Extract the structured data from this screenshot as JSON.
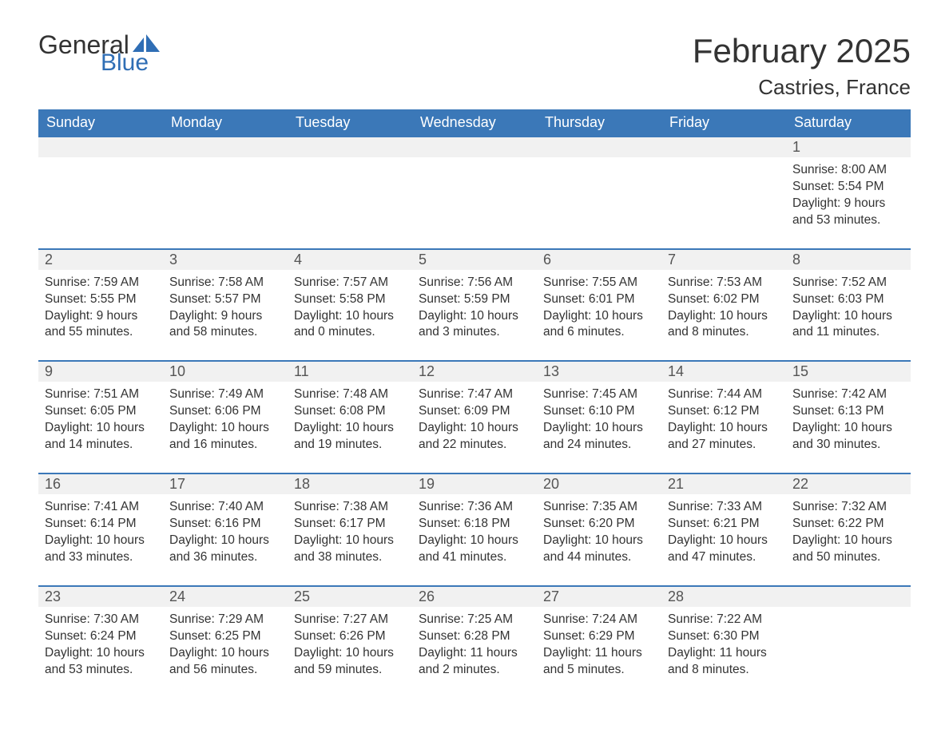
{
  "logo": {
    "text1": "General",
    "text2": "Blue",
    "icon_color": "#2f6eb5",
    "text1_color": "#333333",
    "text2_color": "#2f6eb5"
  },
  "title": "February 2025",
  "location": "Castries, France",
  "colors": {
    "header_bg": "#3b78b8",
    "header_text": "#ffffff",
    "daynum_bg": "#f1f1f1",
    "daynum_border": "#3b78b8",
    "body_bg": "#ffffff",
    "text": "#333333"
  },
  "fonts": {
    "title_size_pt": 32,
    "location_size_pt": 20,
    "header_size_pt": 14,
    "daynum_size_pt": 14,
    "cell_size_pt": 12
  },
  "day_headers": [
    "Sunday",
    "Monday",
    "Tuesday",
    "Wednesday",
    "Thursday",
    "Friday",
    "Saturday"
  ],
  "weeks": [
    [
      null,
      null,
      null,
      null,
      null,
      null,
      {
        "n": "1",
        "sunrise": "8:00 AM",
        "sunset": "5:54 PM",
        "daylight": "9 hours and 53 minutes."
      }
    ],
    [
      {
        "n": "2",
        "sunrise": "7:59 AM",
        "sunset": "5:55 PM",
        "daylight": "9 hours and 55 minutes."
      },
      {
        "n": "3",
        "sunrise": "7:58 AM",
        "sunset": "5:57 PM",
        "daylight": "9 hours and 58 minutes."
      },
      {
        "n": "4",
        "sunrise": "7:57 AM",
        "sunset": "5:58 PM",
        "daylight": "10 hours and 0 minutes."
      },
      {
        "n": "5",
        "sunrise": "7:56 AM",
        "sunset": "5:59 PM",
        "daylight": "10 hours and 3 minutes."
      },
      {
        "n": "6",
        "sunrise": "7:55 AM",
        "sunset": "6:01 PM",
        "daylight": "10 hours and 6 minutes."
      },
      {
        "n": "7",
        "sunrise": "7:53 AM",
        "sunset": "6:02 PM",
        "daylight": "10 hours and 8 minutes."
      },
      {
        "n": "8",
        "sunrise": "7:52 AM",
        "sunset": "6:03 PM",
        "daylight": "10 hours and 11 minutes."
      }
    ],
    [
      {
        "n": "9",
        "sunrise": "7:51 AM",
        "sunset": "6:05 PM",
        "daylight": "10 hours and 14 minutes."
      },
      {
        "n": "10",
        "sunrise": "7:49 AM",
        "sunset": "6:06 PM",
        "daylight": "10 hours and 16 minutes."
      },
      {
        "n": "11",
        "sunrise": "7:48 AM",
        "sunset": "6:08 PM",
        "daylight": "10 hours and 19 minutes."
      },
      {
        "n": "12",
        "sunrise": "7:47 AM",
        "sunset": "6:09 PM",
        "daylight": "10 hours and 22 minutes."
      },
      {
        "n": "13",
        "sunrise": "7:45 AM",
        "sunset": "6:10 PM",
        "daylight": "10 hours and 24 minutes."
      },
      {
        "n": "14",
        "sunrise": "7:44 AM",
        "sunset": "6:12 PM",
        "daylight": "10 hours and 27 minutes."
      },
      {
        "n": "15",
        "sunrise": "7:42 AM",
        "sunset": "6:13 PM",
        "daylight": "10 hours and 30 minutes."
      }
    ],
    [
      {
        "n": "16",
        "sunrise": "7:41 AM",
        "sunset": "6:14 PM",
        "daylight": "10 hours and 33 minutes."
      },
      {
        "n": "17",
        "sunrise": "7:40 AM",
        "sunset": "6:16 PM",
        "daylight": "10 hours and 36 minutes."
      },
      {
        "n": "18",
        "sunrise": "7:38 AM",
        "sunset": "6:17 PM",
        "daylight": "10 hours and 38 minutes."
      },
      {
        "n": "19",
        "sunrise": "7:36 AM",
        "sunset": "6:18 PM",
        "daylight": "10 hours and 41 minutes."
      },
      {
        "n": "20",
        "sunrise": "7:35 AM",
        "sunset": "6:20 PM",
        "daylight": "10 hours and 44 minutes."
      },
      {
        "n": "21",
        "sunrise": "7:33 AM",
        "sunset": "6:21 PM",
        "daylight": "10 hours and 47 minutes."
      },
      {
        "n": "22",
        "sunrise": "7:32 AM",
        "sunset": "6:22 PM",
        "daylight": "10 hours and 50 minutes."
      }
    ],
    [
      {
        "n": "23",
        "sunrise": "7:30 AM",
        "sunset": "6:24 PM",
        "daylight": "10 hours and 53 minutes."
      },
      {
        "n": "24",
        "sunrise": "7:29 AM",
        "sunset": "6:25 PM",
        "daylight": "10 hours and 56 minutes."
      },
      {
        "n": "25",
        "sunrise": "7:27 AM",
        "sunset": "6:26 PM",
        "daylight": "10 hours and 59 minutes."
      },
      {
        "n": "26",
        "sunrise": "7:25 AM",
        "sunset": "6:28 PM",
        "daylight": "11 hours and 2 minutes."
      },
      {
        "n": "27",
        "sunrise": "7:24 AM",
        "sunset": "6:29 PM",
        "daylight": "11 hours and 5 minutes."
      },
      {
        "n": "28",
        "sunrise": "7:22 AM",
        "sunset": "6:30 PM",
        "daylight": "11 hours and 8 minutes."
      },
      null
    ]
  ],
  "labels": {
    "sunrise": "Sunrise:",
    "sunset": "Sunset:",
    "daylight": "Daylight:"
  }
}
